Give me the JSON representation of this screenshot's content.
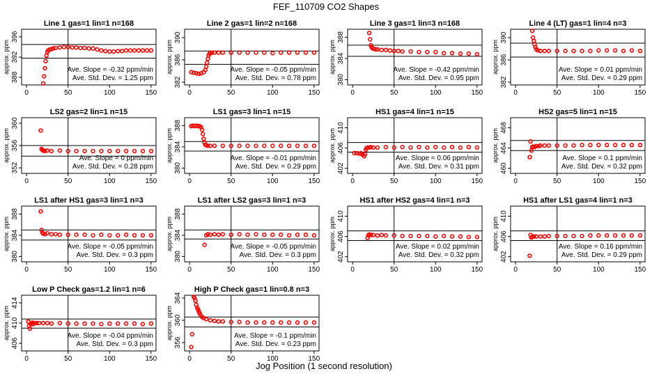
{
  "header": {
    "title": "FEF_110709  CO2 Shapes",
    "footer": "Jog Position (1 second resolution)"
  },
  "style": {
    "marker_color": "#ff0000",
    "line_color": "#000000"
  },
  "chart_data": [
    {
      "type": "scatter",
      "title": "Line 1 gas=1 lin=1 n=168",
      "ylabel": "approx. ppm",
      "xlim": [
        0,
        150
      ],
      "ylim": [
        386.5,
        397.5
      ],
      "yticks": [
        388,
        392,
        396
      ],
      "xticks": [
        0,
        50,
        100,
        150
      ],
      "hlines": [
        391.8,
        394.5
      ],
      "vline": 50,
      "slope": "Ave. Slope = -0.32 ppm/min",
      "stddev": "Ave. Std. Dev. = 1.25 ppm",
      "x": [
        20,
        21,
        22,
        23,
        24,
        25,
        26,
        28,
        30,
        32,
        35,
        40,
        45,
        50,
        55,
        60,
        65,
        70,
        75,
        80,
        85,
        90,
        95,
        100,
        105,
        110,
        115,
        120,
        125,
        130,
        135,
        140,
        145,
        150
      ],
      "y": [
        386.8,
        388.2,
        389.8,
        391.2,
        392.3,
        393.0,
        393.3,
        393.5,
        393.6,
        393.7,
        393.8,
        393.9,
        394.0,
        394.0,
        393.9,
        393.9,
        393.8,
        393.8,
        393.7,
        393.7,
        393.5,
        393.3,
        393.2,
        393.1,
        393.1,
        393.2,
        393.2,
        393.3,
        393.3,
        393.3,
        393.3,
        393.3,
        393.3,
        393.3
      ]
    },
    {
      "type": "scatter",
      "title": "Line 2 gas=1 lin=2 n=168",
      "ylabel": "approx. ppm",
      "xlim": [
        0,
        150
      ],
      "ylim": [
        381.5,
        391.5
      ],
      "yticks": [
        382,
        386,
        390
      ],
      "xticks": [
        0,
        50,
        100,
        150
      ],
      "hlines": [
        385.2,
        387.6
      ],
      "vline": 50,
      "slope": "Ave. Slope = -0.05 ppm/min",
      "stddev": "Ave. Std. Dev. = 0.78 ppm",
      "x": [
        2,
        5,
        8,
        11,
        14,
        17,
        19,
        20,
        21,
        22,
        23,
        24,
        25,
        27,
        30,
        35,
        40,
        50,
        60,
        70,
        80,
        90,
        100,
        110,
        120,
        130,
        140,
        150
      ],
      "y": [
        383.8,
        383.7,
        383.6,
        383.5,
        383.6,
        383.8,
        384.2,
        384.8,
        385.5,
        386.2,
        386.8,
        387.1,
        387.2,
        387.3,
        387.3,
        387.3,
        387.3,
        387.3,
        387.3,
        387.3,
        387.3,
        387.3,
        387.2,
        387.3,
        387.3,
        387.3,
        387.3,
        387.3
      ]
    },
    {
      "type": "scatter",
      "title": "Line 3 gas=1 lin=3 n=168",
      "ylabel": "approx. ppm",
      "xlim": [
        0,
        150
      ],
      "ylim": [
        379,
        389.5
      ],
      "yticks": [
        380,
        384,
        388
      ],
      "xticks": [
        0,
        50,
        100,
        150
      ],
      "hlines": [
        384.4,
        386.5
      ],
      "vline": 50,
      "slope": "Ave. Slope = -0.42 ppm/min",
      "stddev": "Ave. Std. Dev. = 0.95 ppm",
      "x": [
        20,
        21,
        22,
        23,
        24,
        26,
        28,
        30,
        35,
        40,
        45,
        50,
        55,
        60,
        70,
        80,
        90,
        100,
        110,
        120,
        130,
        140,
        150
      ],
      "y": [
        388.8,
        387.6,
        386.5,
        386.1,
        385.9,
        385.8,
        385.7,
        385.7,
        385.6,
        385.6,
        385.5,
        385.4,
        385.4,
        385.3,
        385.3,
        385.2,
        385.2,
        385.2,
        385.0,
        385.0,
        384.9,
        384.9,
        384.8
      ]
    },
    {
      "type": "scatter",
      "title": "Line 4 (LT) gas=1 lin=4 n=3",
      "ylabel": "approx. ppm",
      "xlim": [
        0,
        150
      ],
      "ylim": [
        381.5,
        391.5
      ],
      "yticks": [
        382,
        386,
        390
      ],
      "xticks": [
        0,
        50,
        100,
        150
      ],
      "hlines": [
        386.5,
        389.0
      ],
      "vline": 50,
      "slope": "Ave. Slope = 0.01 ppm/min",
      "stddev": "Ave. Std. Dev. = 0.29 ppm",
      "x": [
        20,
        21,
        22,
        23,
        24,
        25,
        27,
        30,
        35,
        40,
        50,
        60,
        70,
        80,
        90,
        100,
        110,
        120,
        130,
        140,
        150
      ],
      "y": [
        391.2,
        390.0,
        389.4,
        388.8,
        388.3,
        387.9,
        387.7,
        387.6,
        387.6,
        387.6,
        387.6,
        387.6,
        387.6,
        387.6,
        387.6,
        387.7,
        387.7,
        387.7,
        387.6,
        387.7,
        387.6
      ]
    },
    {
      "type": "scatter",
      "title": "LS2 gas=2 lin=1 n=15",
      "ylabel": "approx. ppm",
      "xlim": [
        0,
        150
      ],
      "ylim": [
        351,
        361
      ],
      "yticks": [
        352,
        356,
        360
      ],
      "xticks": [
        0,
        50,
        100,
        150
      ],
      "hlines": [
        354.1,
        356.0
      ],
      "vline": 50,
      "slope": "Ave. Slope = 0 ppm/min",
      "stddev": "Ave. Std. Dev. = 0.28 ppm",
      "x": [
        17,
        18,
        19,
        20,
        22,
        25,
        30,
        40,
        50,
        60,
        70,
        80,
        90,
        100,
        110,
        120,
        130,
        140,
        150
      ],
      "y": [
        358.7,
        355.4,
        355.2,
        355.1,
        355.0,
        355.1,
        355.0,
        355.1,
        355.0,
        355.0,
        355.0,
        355.0,
        355.0,
        355.0,
        355.0,
        355.0,
        355.0,
        355.0,
        355.0
      ]
    },
    {
      "type": "scatter",
      "title": "LS1 gas=3 lin=1 n=15",
      "ylabel": "approx. ppm",
      "xlim": [
        0,
        150
      ],
      "ylim": [
        379,
        389.5
      ],
      "yticks": [
        380,
        384,
        388
      ],
      "xticks": [
        0,
        50,
        100,
        150
      ],
      "hlines": [
        383.2,
        385.0
      ],
      "vline": 50,
      "slope": "Ave. Slope = -0.01 ppm/min",
      "stddev": "Ave. Std. Dev. = 0.29 ppm",
      "x": [
        2,
        4,
        6,
        8,
        10,
        12,
        14,
        15,
        16,
        17,
        18,
        19,
        20,
        22,
        25,
        30,
        40,
        50,
        60,
        70,
        80,
        90,
        100,
        110,
        120,
        130,
        140,
        150
      ],
      "y": [
        387.9,
        388.0,
        387.9,
        388.0,
        387.9,
        387.9,
        387.7,
        387.2,
        386.4,
        385.5,
        384.8,
        384.4,
        384.3,
        384.2,
        384.2,
        384.2,
        384.2,
        384.2,
        384.2,
        384.2,
        384.2,
        384.2,
        384.2,
        384.2,
        384.2,
        384.2,
        384.2,
        384.2
      ]
    },
    {
      "type": "scatter",
      "title": "HS1 gas=4 lin=1 n=15",
      "ylabel": "approx. ppm",
      "xlim": [
        0,
        150
      ],
      "ylim": [
        401,
        412
      ],
      "yticks": [
        402,
        406,
        410
      ],
      "xticks": [
        0,
        50,
        100,
        150
      ],
      "hlines": [
        405.2,
        407.1
      ],
      "vline": 50,
      "slope": "Ave. Slope = 0.06 ppm/min",
      "stddev": "Ave. Std. Dev. = 0.31 ppm",
      "x": [
        2,
        5,
        8,
        10,
        12,
        14,
        15,
        16,
        17,
        18,
        20,
        22,
        25,
        30,
        40,
        50,
        60,
        70,
        80,
        90,
        100,
        110,
        120,
        130,
        140,
        150
      ],
      "y": [
        405.0,
        405.0,
        404.9,
        405.0,
        404.7,
        404.4,
        404.8,
        405.7,
        406.0,
        406.1,
        406.1,
        406.2,
        406.1,
        406.1,
        406.2,
        406.1,
        406.2,
        406.1,
        406.2,
        406.1,
        406.2,
        406.1,
        406.2,
        406.1,
        406.2,
        406.1
      ]
    },
    {
      "type": "scatter",
      "title": "HS2 gas=5 lin=1 n=15",
      "ylabel": "approx. ppm",
      "xlim": [
        0,
        150
      ],
      "ylim": [
        459,
        470
      ],
      "yticks": [
        460,
        464,
        468
      ],
      "xticks": [
        0,
        50,
        100,
        150
      ],
      "hlines": [
        463.5,
        465.5
      ],
      "vline": 50,
      "slope": "Ave. Slope = 0.1 ppm/min",
      "stddev": "Ave. Std. Dev. = 0.32 ppm",
      "x": [
        17,
        18,
        19,
        20,
        21,
        23,
        25,
        28,
        30,
        35,
        40,
        50,
        60,
        70,
        80,
        90,
        100,
        110,
        120,
        130,
        140,
        150
      ],
      "y": [
        462.2,
        465.3,
        463.5,
        464.2,
        464.3,
        464.2,
        464.4,
        464.4,
        464.5,
        464.5,
        464.5,
        464.5,
        464.5,
        464.5,
        464.6,
        464.6,
        464.6,
        464.6,
        464.6,
        464.6,
        464.6,
        464.6
      ]
    },
    {
      "type": "scatter",
      "title": "LS1 after HS1 gas=3 lin=1 n=3",
      "ylabel": "approx. ppm",
      "xlim": [
        0,
        150
      ],
      "ylim": [
        379,
        389.5
      ],
      "yticks": [
        380,
        384,
        388
      ],
      "xticks": [
        0,
        50,
        100,
        150
      ],
      "hlines": [
        383.1,
        385.0
      ],
      "vline": 50,
      "slope": "Ave. Slope = -0.05 ppm/min",
      "stddev": "Ave. Std. Dev. = 0.3 ppm",
      "x": [
        17,
        18,
        19,
        20,
        22,
        25,
        30,
        35,
        40,
        50,
        60,
        70,
        80,
        90,
        100,
        110,
        120,
        130,
        140,
        150
      ],
      "y": [
        388.5,
        385.0,
        384.5,
        384.3,
        384.2,
        384.4,
        384.2,
        384.2,
        384.1,
        384.1,
        384.1,
        384.1,
        384.0,
        384.1,
        384.0,
        384.0,
        384.1,
        384.0,
        384.0,
        384.0
      ]
    },
    {
      "type": "scatter",
      "title": "LS1 after LS2 gas=3 lin=1 n=3",
      "ylabel": "approx. ppm",
      "xlim": [
        0,
        150
      ],
      "ylim": [
        379,
        389.5
      ],
      "yticks": [
        380,
        384,
        388
      ],
      "xticks": [
        0,
        50,
        100,
        150
      ],
      "hlines": [
        383.3,
        385.0
      ],
      "vline": 50,
      "slope": "Ave. Slope = -0.05 ppm/min",
      "stddev": "Ave. Std. Dev. = 0.3 ppm",
      "x": [
        18,
        20,
        22,
        25,
        30,
        35,
        40,
        50,
        60,
        70,
        80,
        90,
        100,
        110,
        120,
        130,
        140,
        150
      ],
      "y": [
        382.2,
        384.0,
        384.2,
        384.1,
        384.2,
        384.1,
        384.2,
        384.1,
        384.2,
        384.1,
        384.2,
        384.1,
        384.1,
        384.1,
        384.0,
        384.1,
        384.1,
        384.0
      ]
    },
    {
      "type": "scatter",
      "title": "HS1 after HS2 gas=4 lin=1 n=3",
      "ylabel": "approx. ppm",
      "xlim": [
        0,
        150
      ],
      "ylim": [
        401,
        412
      ],
      "yticks": [
        402,
        406,
        410
      ],
      "xticks": [
        0,
        50,
        100,
        150
      ],
      "hlines": [
        405.2,
        407.1
      ],
      "vline": 50,
      "slope": "Ave. Slope = 0.02 ppm/min",
      "stddev": "Ave. Std. Dev. = 0.32 ppm",
      "x": [
        18,
        19,
        20,
        22,
        25,
        30,
        35,
        40,
        50,
        60,
        70,
        80,
        90,
        100,
        110,
        120,
        130,
        140,
        150
      ],
      "y": [
        405.7,
        406.2,
        406.4,
        406.3,
        406.3,
        406.2,
        406.3,
        406.2,
        406.2,
        406.1,
        406.1,
        406.1,
        406.1,
        406.0,
        406.1,
        406.0,
        406.0,
        405.9,
        405.9
      ]
    },
    {
      "type": "scatter",
      "title": "HS1 after LS1 gas=4 lin=1 n=3",
      "ylabel": "approx. ppm",
      "xlim": [
        0,
        150
      ],
      "ylim": [
        401,
        412
      ],
      "yticks": [
        402,
        406,
        410
      ],
      "xticks": [
        0,
        50,
        100,
        150
      ],
      "hlines": [
        405.2,
        407.1
      ],
      "vline": 50,
      "slope": "Ave. Slope = 0.16 ppm/min",
      "stddev": "Ave. Std. Dev. = 0.29 ppm",
      "x": [
        17,
        18,
        19,
        20,
        22,
        25,
        30,
        35,
        40,
        50,
        60,
        70,
        80,
        90,
        100,
        110,
        120,
        130,
        140,
        150
      ],
      "y": [
        402.2,
        406.3,
        405.8,
        405.9,
        406.0,
        406.0,
        406.0,
        406.0,
        406.1,
        406.1,
        406.1,
        406.1,
        406.1,
        406.2,
        406.2,
        406.2,
        406.2,
        406.2,
        406.2,
        406.2
      ]
    },
    {
      "type": "scatter",
      "title": "Low P Check gas=1.2 lin=1 n=6",
      "ylabel": "approx. ppm",
      "xlim": [
        0,
        150
      ],
      "ylim": [
        404.5,
        415.5
      ],
      "yticks": [
        406,
        410,
        414
      ],
      "xticks": [
        0,
        50,
        100,
        150
      ],
      "hlines": [
        409.0,
        410.8
      ],
      "vline": 50,
      "slope": "Ave. Slope = -0.04 ppm/min",
      "stddev": "Ave. Std. Dev. = 0.3 ppm",
      "x": [
        2,
        3,
        4,
        5,
        6,
        7,
        8,
        10,
        12,
        15,
        20,
        25,
        30,
        40,
        50,
        60,
        70,
        80,
        90,
        100,
        110,
        120,
        130,
        140,
        150
      ],
      "y": [
        410.3,
        409.5,
        408.9,
        409.8,
        410.0,
        410.1,
        409.8,
        410.0,
        410.0,
        410.0,
        410.0,
        410.0,
        409.9,
        410.0,
        409.9,
        409.9,
        409.9,
        409.9,
        409.8,
        409.9,
        409.9,
        409.9,
        409.9,
        409.8,
        409.9
      ]
    },
    {
      "type": "scatter",
      "title": "High P Check gas=1 lin=0.8 n=3",
      "ylabel": "approx. ppm",
      "xlim": [
        0,
        150
      ],
      "ylim": [
        354.5,
        364.5
      ],
      "yticks": [
        356,
        360,
        364
      ],
      "xticks": [
        0,
        50,
        100,
        150
      ],
      "hlines": [
        358.8,
        360.6
      ],
      "vline": 50,
      "slope": "Ave. Slope = -0.1 ppm/min",
      "stddev": "Ave. Std. Dev. = 0.23 ppm",
      "x": [
        2,
        3,
        5,
        6,
        7,
        8,
        9,
        10,
        11,
        12,
        13,
        15,
        17,
        20,
        25,
        30,
        35,
        40,
        50,
        60,
        70,
        80,
        90,
        100,
        110,
        120,
        130,
        140,
        150
      ],
      "y": [
        355.2,
        357.5,
        364.2,
        364.0,
        363.5,
        362.8,
        362.3,
        362.0,
        361.6,
        361.3,
        361.0,
        360.6,
        360.4,
        360.2,
        360.0,
        359.9,
        359.8,
        359.8,
        359.7,
        359.7,
        359.6,
        359.6,
        359.6,
        359.6,
        359.6,
        359.6,
        359.6,
        359.6,
        359.6
      ]
    }
  ]
}
